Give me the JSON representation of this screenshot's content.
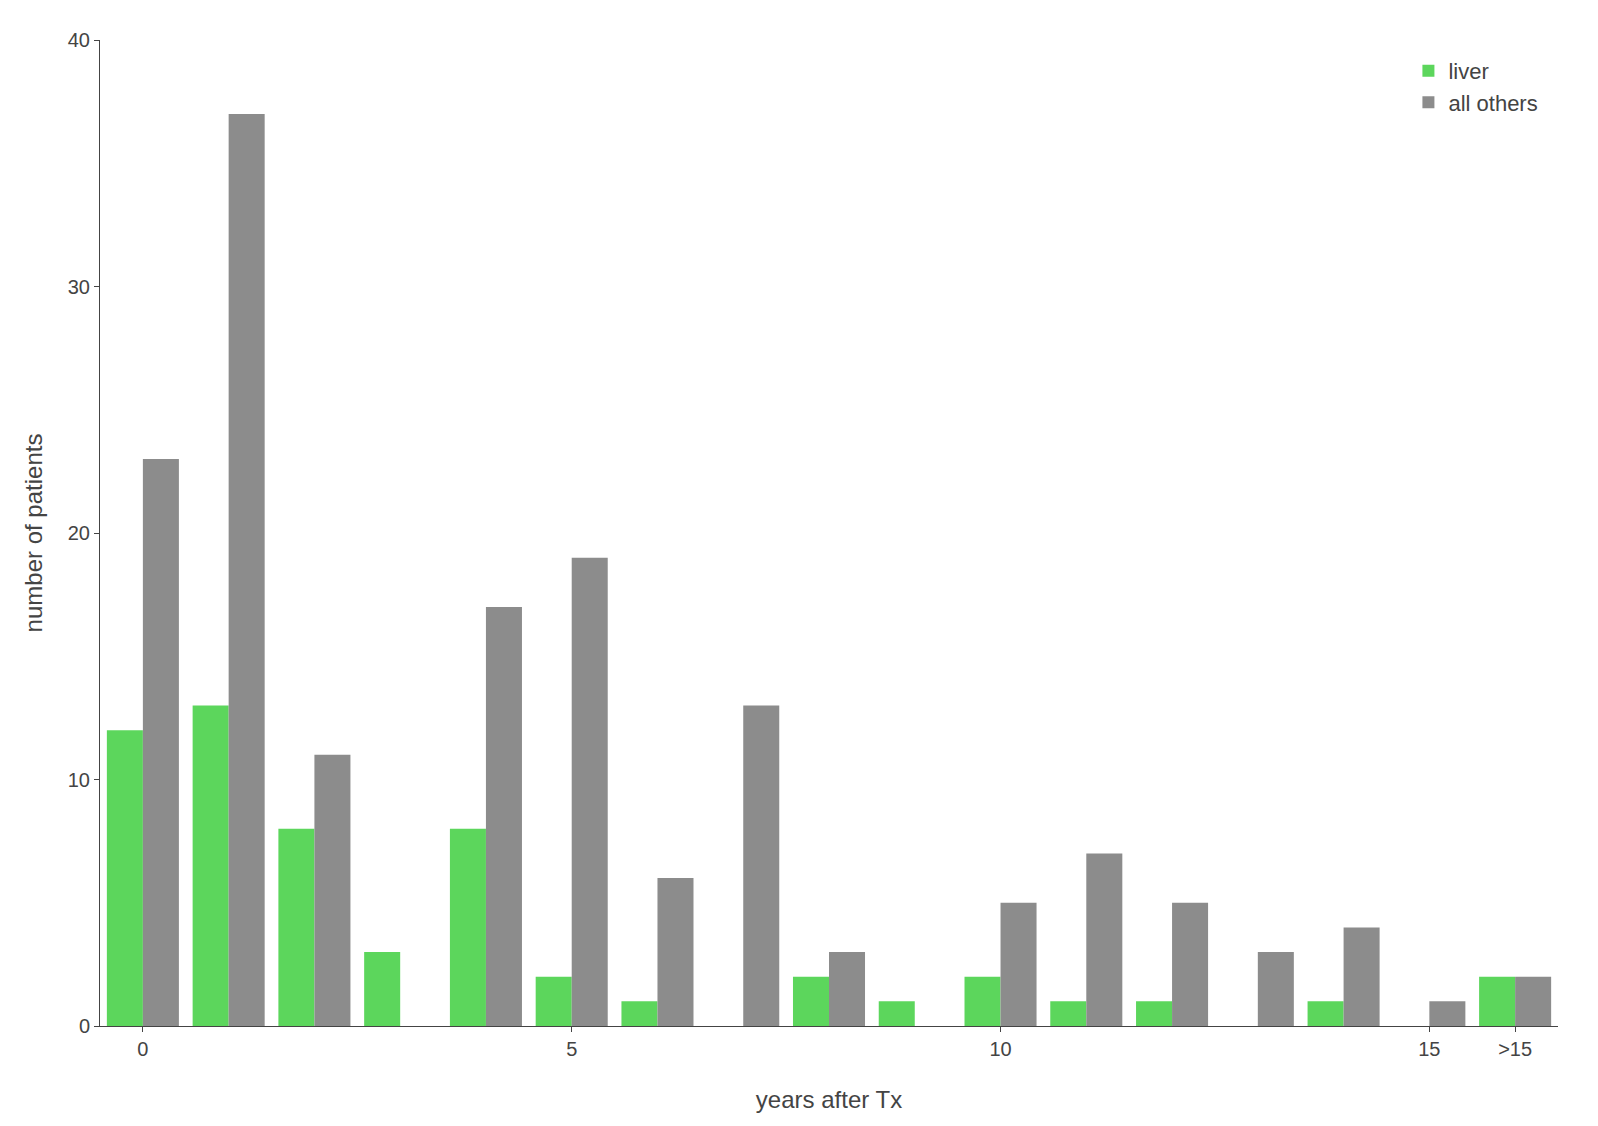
{
  "chart_data": {
    "type": "bar",
    "xlabel": "years after Tx",
    "ylabel": "number of patients",
    "categories": [
      "0",
      null,
      null,
      null,
      null,
      "5",
      null,
      null,
      null,
      null,
      "10",
      null,
      null,
      null,
      null,
      "15",
      ">15"
    ],
    "series": [
      {
        "name": "liver",
        "color": "#5cd65c",
        "values": [
          12,
          13,
          8,
          3,
          8,
          2,
          1,
          0,
          2,
          1,
          2,
          1,
          1,
          0,
          1,
          0,
          2
        ]
      },
      {
        "name": "all others",
        "color": "#8c8c8c",
        "values": [
          23,
          37,
          11,
          0,
          17,
          19,
          6,
          13,
          3,
          0,
          5,
          7,
          5,
          3,
          4,
          1,
          2
        ]
      }
    ],
    "ylim": [
      0,
      40
    ],
    "yticks": [
      0,
      10,
      20,
      30,
      40
    ],
    "grid": false,
    "legend": "upper right"
  }
}
